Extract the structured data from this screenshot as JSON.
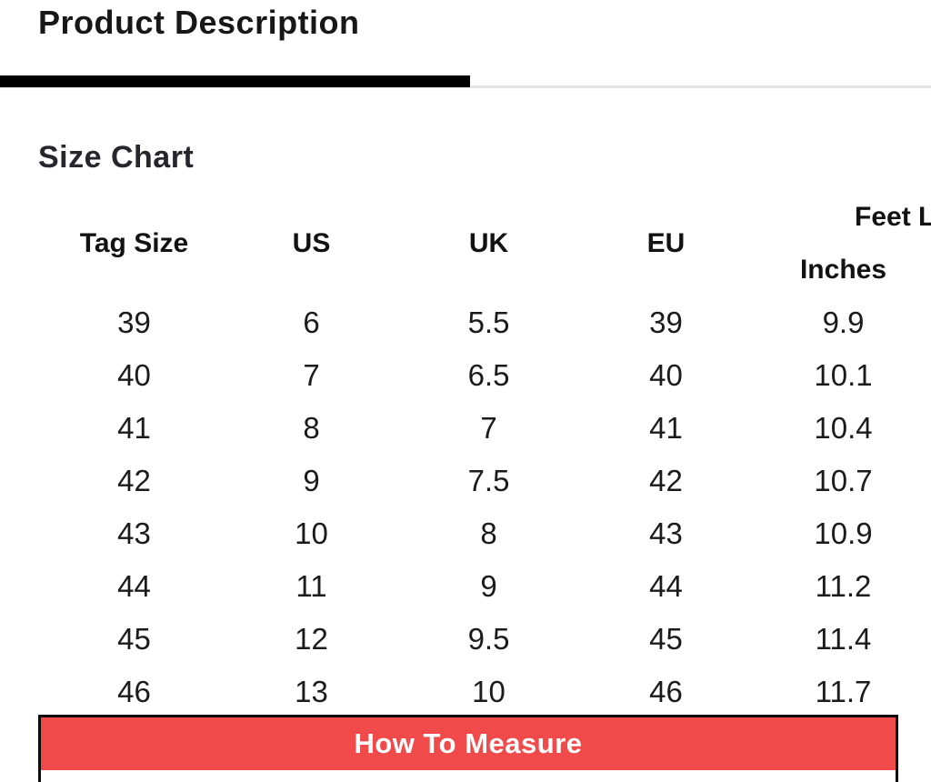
{
  "header": {
    "tab_label": "Product Description"
  },
  "size_chart": {
    "title": "Size Chart",
    "column_headers": {
      "tag_size": "Tag Size",
      "us": "US",
      "uk": "UK",
      "eu": "EU",
      "feet_length_group": "Feet Length",
      "feet_length_unit": "Inches"
    },
    "rows": [
      {
        "tag_size": "39",
        "us": "6",
        "uk": "5.5",
        "eu": "39",
        "inches": "9.9"
      },
      {
        "tag_size": "40",
        "us": "7",
        "uk": "6.5",
        "eu": "40",
        "inches": "10.1"
      },
      {
        "tag_size": "41",
        "us": "8",
        "uk": "7",
        "eu": "41",
        "inches": "10.4"
      },
      {
        "tag_size": "42",
        "us": "9",
        "uk": "7.5",
        "eu": "42",
        "inches": "10.7"
      },
      {
        "tag_size": "43",
        "us": "10",
        "uk": "8",
        "eu": "43",
        "inches": "10.9"
      },
      {
        "tag_size": "44",
        "us": "11",
        "uk": "9",
        "eu": "44",
        "inches": "11.2"
      },
      {
        "tag_size": "45",
        "us": "12",
        "uk": "9.5",
        "eu": "45",
        "inches": "11.4"
      },
      {
        "tag_size": "46",
        "us": "13",
        "uk": "10",
        "eu": "46",
        "inches": "11.7"
      }
    ]
  },
  "how_to_measure": {
    "label": "How To Measure"
  },
  "colors": {
    "accent_red": "#F04A4A",
    "indicator_black": "#000000",
    "divider_gray": "#E4E4E4"
  }
}
